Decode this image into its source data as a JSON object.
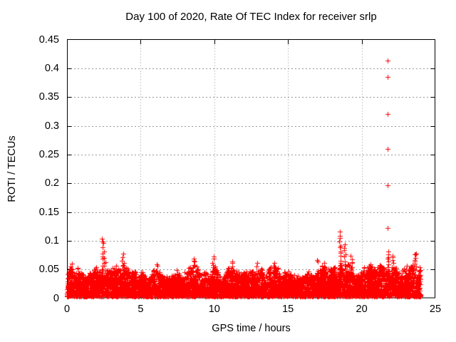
{
  "chart_data": {
    "type": "scatter",
    "title": "Day 100 of 2020, Rate Of TEC Index for receiver srlp",
    "xlabel": "GPS time / hours",
    "ylabel": "ROTI / TECUs",
    "xlim": [
      0,
      25
    ],
    "ylim": [
      0,
      0.45
    ],
    "xticks": [
      "0",
      "5",
      "10",
      "15",
      "20",
      "25"
    ],
    "yticks": [
      "0",
      "0.05",
      "0.1",
      "0.15",
      "0.2",
      "0.25",
      "0.3",
      "0.35",
      "0.4",
      "0.45"
    ],
    "grid": true,
    "legend": null,
    "marker": "plus",
    "colors": {
      "marker": "#ff0000",
      "grid": "#999999",
      "axis": "#000000",
      "background": "#ffffff",
      "text": "#000000"
    },
    "band": {
      "comment": "dense noise band of ROTI values covering 0-24 h; upper envelope sampled every 0.5 h, floor ~0.003 TECU",
      "x_start": 0,
      "x_end": 24,
      "x_step_envelope": 0.5,
      "y_floor": 0.003,
      "envelope": [
        0.048,
        0.057,
        0.046,
        0.05,
        0.054,
        0.05,
        0.05,
        0.058,
        0.056,
        0.049,
        0.046,
        0.042,
        0.048,
        0.043,
        0.039,
        0.052,
        0.048,
        0.058,
        0.05,
        0.046,
        0.054,
        0.048,
        0.055,
        0.048,
        0.043,
        0.05,
        0.055,
        0.048,
        0.058,
        0.05,
        0.046,
        0.041,
        0.046,
        0.052,
        0.055,
        0.058,
        0.06,
        0.056,
        0.058,
        0.048,
        0.052,
        0.055,
        0.05,
        0.06,
        0.056,
        0.052,
        0.055,
        0.06,
        0.056
      ],
      "n_points": 6000,
      "seed": 1337,
      "skew": 1.3
    },
    "spike_clusters": [
      {
        "x": 0.3,
        "y_from": 0.045,
        "y_to": 0.058,
        "n": 5
      },
      {
        "x": 2.45,
        "y_from": 0.05,
        "y_to": 0.105,
        "n": 11
      },
      {
        "x": 2.55,
        "y_from": 0.05,
        "y_to": 0.07,
        "n": 4
      },
      {
        "x": 3.8,
        "y_from": 0.048,
        "y_to": 0.075,
        "n": 8
      },
      {
        "x": 6.1,
        "y_from": 0.045,
        "y_to": 0.06,
        "n": 4
      },
      {
        "x": 8.6,
        "y_from": 0.048,
        "y_to": 0.07,
        "n": 7
      },
      {
        "x": 9.9,
        "y_from": 0.048,
        "y_to": 0.071,
        "n": 6
      },
      {
        "x": 11.2,
        "y_from": 0.045,
        "y_to": 0.066,
        "n": 5
      },
      {
        "x": 12.9,
        "y_from": 0.045,
        "y_to": 0.06,
        "n": 4
      },
      {
        "x": 14.0,
        "y_from": 0.045,
        "y_to": 0.063,
        "n": 5
      },
      {
        "x": 17.05,
        "y_from": 0.062,
        "y_to": 0.066,
        "n": 2
      },
      {
        "x": 18.55,
        "y_from": 0.05,
        "y_to": 0.115,
        "n": 13
      },
      {
        "x": 18.85,
        "y_from": 0.05,
        "y_to": 0.092,
        "n": 9
      },
      {
        "x": 19.3,
        "y_from": 0.05,
        "y_to": 0.073,
        "n": 6
      },
      {
        "x": 20.6,
        "y_from": 0.045,
        "y_to": 0.06,
        "n": 4
      },
      {
        "x": 21.8,
        "y_from": 0.05,
        "y_to": 0.08,
        "n": 8
      },
      {
        "x": 22.1,
        "y_from": 0.05,
        "y_to": 0.075,
        "n": 6
      },
      {
        "x": 23.65,
        "y_from": 0.05,
        "y_to": 0.078,
        "n": 9
      }
    ],
    "outliers": [
      {
        "x": 21.76,
        "y": 0.122
      },
      {
        "x": 21.76,
        "y": 0.196
      },
      {
        "x": 21.76,
        "y": 0.26
      },
      {
        "x": 21.76,
        "y": 0.32
      },
      {
        "x": 21.76,
        "y": 0.385
      },
      {
        "x": 21.76,
        "y": 0.413
      },
      {
        "x": 23.7,
        "y": 0.077
      }
    ]
  }
}
